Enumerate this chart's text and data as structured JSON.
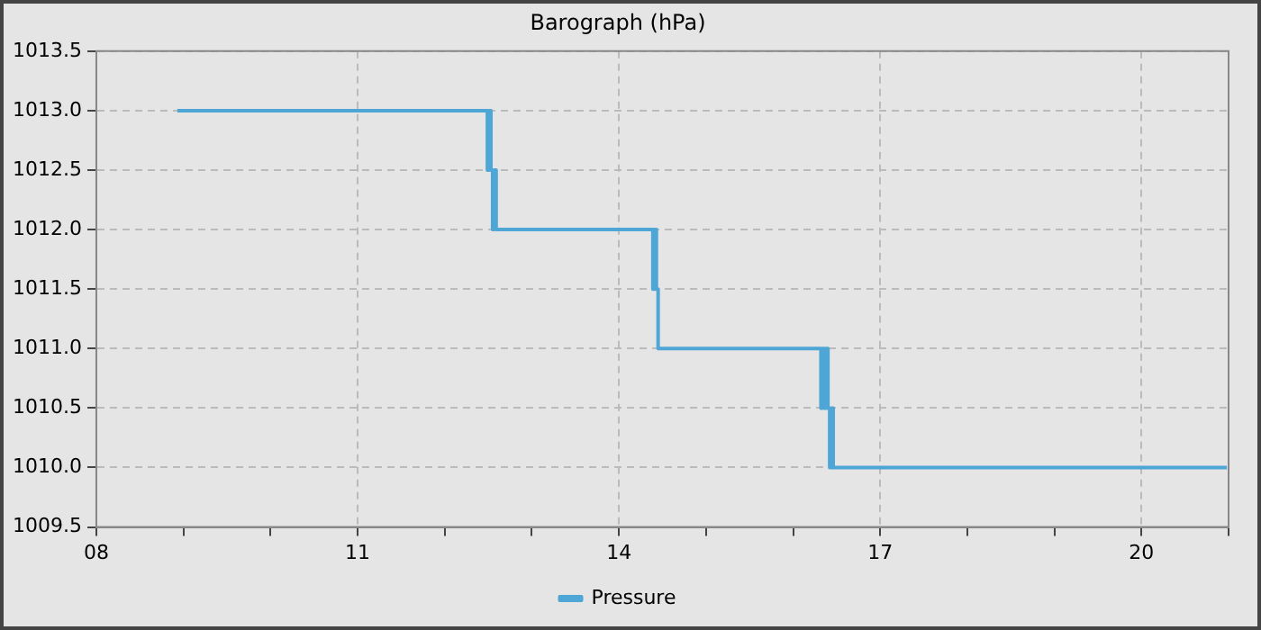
{
  "chart_data": {
    "type": "step",
    "title": "Barograph (hPa)",
    "x": [
      8.93,
      12.49,
      12.51,
      12.53,
      12.55,
      12.57,
      12.59,
      12.61,
      14.39,
      14.41,
      14.43,
      14.45,
      16.32,
      16.34,
      16.36,
      16.38,
      16.4,
      16.42,
      16.44,
      16.46,
      20.98
    ],
    "series": [
      {
        "name": "Pressure",
        "color": "#4da6d6",
        "values": [
          1013,
          1012.5,
          1013,
          1012.5,
          1012,
          1012.5,
          1012,
          1012,
          1011.5,
          1012,
          1011.5,
          1011,
          1010.5,
          1011,
          1010.5,
          1011,
          1010.5,
          1010,
          1010.5,
          1010,
          1010
        ]
      }
    ],
    "xlim": [
      8,
      21
    ],
    "xticks": [
      {
        "value": 8,
        "label": "08"
      },
      {
        "value": 9,
        "label": null
      },
      {
        "value": 10,
        "label": null
      },
      11,
      {
        "value": 12,
        "label": null
      },
      {
        "value": 13,
        "label": null
      },
      14,
      {
        "value": 15,
        "label": null
      },
      {
        "value": 16,
        "label": null
      },
      17,
      {
        "value": 18,
        "label": null
      },
      {
        "value": 19,
        "label": null
      },
      20,
      {
        "value": 21,
        "label": null
      }
    ],
    "ylim": [
      1009.5,
      1013.5
    ],
    "yticks": [
      {
        "value": 1009.5,
        "label": "1009.5"
      },
      {
        "value": 1010,
        "label": "1010.0"
      },
      {
        "value": 1010.5,
        "label": "1010.5"
      },
      {
        "value": 1011,
        "label": "1011.0"
      },
      {
        "value": 1011.5,
        "label": "1011.5"
      },
      {
        "value": 1012,
        "label": "1012.0"
      },
      {
        "value": 1012.5,
        "label": "1012.5"
      },
      {
        "value": 1013,
        "label": "1013.0"
      },
      {
        "value": 1013.5,
        "label": "1013.5"
      }
    ],
    "grid": true,
    "legend": "bottom",
    "marker": "none",
    "line_style": "solid"
  }
}
